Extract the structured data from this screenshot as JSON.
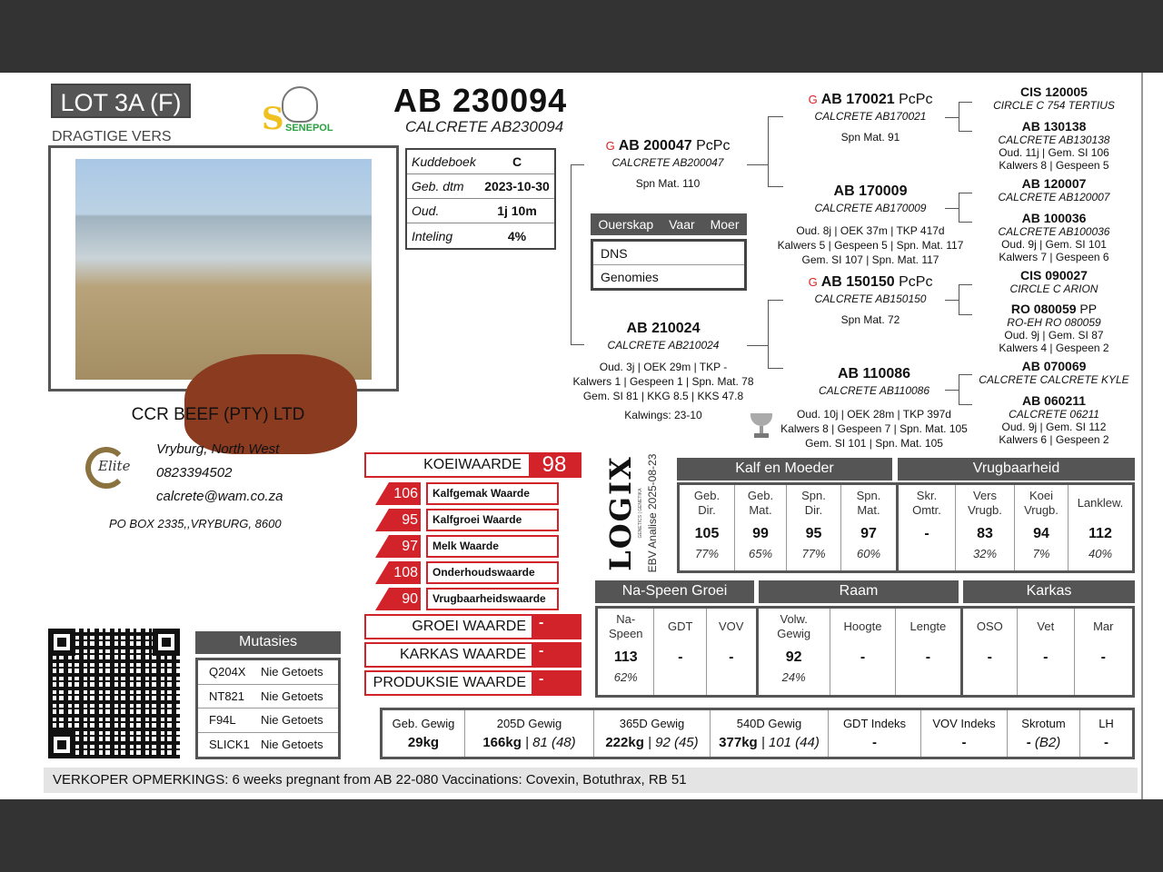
{
  "lot": "LOT 3A (F)",
  "category": "DRAGTIGE VERS",
  "animal": {
    "id": "AB 230094",
    "name": "CALCRETE AB230094"
  },
  "info": [
    {
      "k": "Kuddeboek",
      "v": "C"
    },
    {
      "k": "Geb. dtm",
      "v": "2023-10-30"
    },
    {
      "k": "Oud.",
      "v": "1j 10m"
    },
    {
      "k": "Inteling",
      "v": "4%"
    }
  ],
  "logos": {
    "breed": "SENEPOL",
    "elite": "Elite"
  },
  "seller": {
    "name": "CCR BEEF (PTY) LTD",
    "location": "Vryburg, North West",
    "phone": "0823394502",
    "email": "calcrete@wam.co.za",
    "address": "PO  BOX  2335,,VRYBURG,  8600"
  },
  "pedigree": {
    "sire": {
      "id": "AB 200047",
      "suffix": "PcPc",
      "name": "CALCRETE AB200047",
      "stats": [
        "Spn Mat. 110"
      ],
      "genomic": true
    },
    "dam": {
      "id": "AB 210024",
      "suffix": "",
      "name": "CALCRETE AB210024",
      "stats": [
        "Oud. 3j | OEK 29m | TKP -",
        "Kalwers 1 | Gespeen 1 | Spn. Mat. 78",
        "Gem. SI 81 | KKG 8.5 | KKS 47.8"
      ],
      "kalwings": "Kalwings: 23-10"
    },
    "ss": {
      "id": "AB 170021",
      "suffix": "PcPc",
      "name": "CALCRETE AB170021",
      "stats": [
        "Spn Mat. 91"
      ],
      "genomic": true
    },
    "sd": {
      "id": "AB 170009",
      "suffix": "",
      "name": "CALCRETE AB170009",
      "stats": [
        "Oud. 8j | OEK 37m | TKP 417d",
        "Kalwers 5 | Gespeen 5 | Spn. Mat. 117",
        "Gem. SI 107 | Spn. Mat. 117"
      ]
    },
    "ds": {
      "id": "AB 150150",
      "suffix": "PcPc",
      "name": "CALCRETE AB150150",
      "stats": [
        "Spn Mat. 72"
      ],
      "genomic": true
    },
    "dd": {
      "id": "AB 110086",
      "suffix": "",
      "name": "CALCRETE AB110086",
      "stats": [
        "Oud. 10j | OEK 28m | TKP 397d",
        "Kalwers 8 | Gespeen 7 | Spn. Mat. 105",
        "Gem. SI 101 | Spn. Mat. 105"
      ],
      "trophy": true
    },
    "g3": [
      {
        "id": "CIS 120005",
        "suffix": "",
        "name": "CIRCLE C 754 TERTIUS",
        "stats": []
      },
      {
        "id": "AB 130138",
        "suffix": "",
        "name": "CALCRETE AB130138",
        "stats": [
          "Oud. 11j | Gem. SI 106",
          "Kalwers 8 | Gespeen 5"
        ]
      },
      {
        "id": "AB 120007",
        "suffix": "",
        "name": "CALCRETE AB120007",
        "stats": []
      },
      {
        "id": "AB 100036",
        "suffix": "",
        "name": "CALCRETE AB100036",
        "stats": [
          "Oud. 9j | Gem. SI 101",
          "Kalwers 7 | Gespeen 6"
        ]
      },
      {
        "id": "CIS 090027",
        "suffix": "",
        "name": "CIRCLE C ARION",
        "stats": []
      },
      {
        "id": "RO 080059",
        "suffix": "PP",
        "name": "RO-EH RO 080059",
        "stats": [
          "Oud. 9j | Gem. SI 87",
          "Kalwers 4 | Gespeen 2"
        ]
      },
      {
        "id": "AB 070069",
        "suffix": "",
        "name": "CALCRETE CALCRETE KYLE",
        "stats": []
      },
      {
        "id": "AB 060211",
        "suffix": "",
        "name": "CALCRETE 06211",
        "stats": [
          "Oud. 9j | Gem. SI 112",
          "Kalwers 6 | Gespeen 2"
        ]
      }
    ]
  },
  "parentage": {
    "header": [
      "Ouerskap",
      "Vaar",
      "Moer"
    ],
    "rows": [
      "DNS",
      "Genomies"
    ]
  },
  "values": {
    "koeiwaarde": {
      "label": "KOEIWAARDE",
      "value": "98"
    },
    "sub": [
      {
        "v": "106",
        "l": "Kalfgemak Waarde"
      },
      {
        "v": "95",
        "l": "Kalfgroei Waarde"
      },
      {
        "v": "97",
        "l": "Melk Waarde"
      },
      {
        "v": "108",
        "l": "Onderhoudswaarde"
      },
      {
        "v": "90",
        "l": "Vrugbaarheidswaarde"
      }
    ],
    "other": [
      {
        "l": "GROEI WAARDE",
        "v": "-"
      },
      {
        "l": "KARKAS WAARDE",
        "v": "-"
      },
      {
        "l": "PRODUKSIE WAARDE",
        "v": "-"
      }
    ]
  },
  "logix": {
    "brand": "LOGIX",
    "tagline": "GENETICS | GENETIKA",
    "analysis": "EBV Analise 2025-08-23"
  },
  "ebv1": {
    "groups": [
      "Kalf en Moeder",
      "Vrugbaarheid"
    ],
    "cols": [
      {
        "h": "Geb.\nDir.",
        "v": "105",
        "p": "77%"
      },
      {
        "h": "Geb.\nMat.",
        "v": "99",
        "p": "65%"
      },
      {
        "h": "Spn.\nDir.",
        "v": "95",
        "p": "77%"
      },
      {
        "h": "Spn.\nMat.",
        "v": "97",
        "p": "60%"
      },
      {
        "h": "Skr.\nOmtr.",
        "v": "-",
        "p": ""
      },
      {
        "h": "Vers\nVrugb.",
        "v": "83",
        "p": "32%"
      },
      {
        "h": "Koei\nVrugb.",
        "v": "94",
        "p": "7%"
      },
      {
        "h": "Lanklew.",
        "v": "112",
        "p": "40%"
      }
    ]
  },
  "ebv2": {
    "groups": [
      "Na-Speen Groei",
      "Raam",
      "Karkas"
    ],
    "cols": [
      {
        "h": "Na-\nSpeen",
        "v": "113",
        "p": "62%"
      },
      {
        "h": "GDT",
        "v": "-",
        "p": ""
      },
      {
        "h": "VOV",
        "v": "-",
        "p": ""
      },
      {
        "h": "Volw.\nGewig",
        "v": "92",
        "p": "24%"
      },
      {
        "h": "Hoogte",
        "v": "-",
        "p": ""
      },
      {
        "h": "Lengte",
        "v": "-",
        "p": ""
      },
      {
        "h": "OSO",
        "v": "-",
        "p": ""
      },
      {
        "h": "Vet",
        "v": "-",
        "p": ""
      },
      {
        "h": "Mar",
        "v": "-",
        "p": ""
      }
    ]
  },
  "weights": [
    {
      "h": "Geb. Gewig",
      "v": "29kg",
      "x": ""
    },
    {
      "h": "205D Gewig",
      "v": "166kg",
      "x": " | 81 (48)"
    },
    {
      "h": "365D Gewig",
      "v": "222kg",
      "x": " | 92 (45)"
    },
    {
      "h": "540D Gewig",
      "v": "377kg",
      "x": " | 101 (44)"
    },
    {
      "h": "GDT Indeks",
      "v": "-",
      "x": ""
    },
    {
      "h": "VOV Indeks",
      "v": "-",
      "x": ""
    },
    {
      "h": "Skrotum",
      "v": "-",
      "x": " (B2)"
    },
    {
      "h": "LH",
      "v": "-",
      "x": ""
    }
  ],
  "mutations": {
    "title": "Mutasies",
    "rows": [
      {
        "g": "Q204X",
        "s": "Nie Getoets"
      },
      {
        "g": "NT821",
        "s": "Nie Getoets"
      },
      {
        "g": "F94L",
        "s": "Nie Getoets"
      },
      {
        "g": "SLICK1",
        "s": "Nie Getoets"
      }
    ]
  },
  "remarks": {
    "label": "VERKOPER OPMERKINGS:",
    "text": " 6 weeks pregnant from AB 22-080 Vaccinations: Covexin, Botuthrax, RB 51"
  },
  "colors": {
    "accent": "#d2232a",
    "header": "#555555",
    "frame": "#333333"
  }
}
